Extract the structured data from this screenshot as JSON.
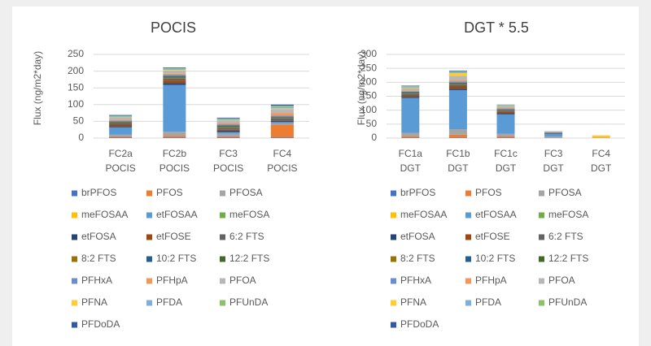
{
  "chart_data": [
    {
      "type": "bar",
      "stacked": true,
      "title": "POCIS",
      "y_label": "Flux (ng/m2*day)",
      "categories": [
        [
          "FC2a",
          "POCIS"
        ],
        [
          "FC2b",
          "POCIS"
        ],
        [
          "FC3",
          "POCIS"
        ],
        [
          "FC4",
          "POCIS"
        ]
      ],
      "ylim": [
        0,
        250
      ],
      "yticks": [
        0,
        50,
        100,
        150,
        200,
        250
      ],
      "grid": true,
      "legend": "bottom",
      "series": [
        {
          "name": "brPFOS",
          "color": "#4472c4",
          "values": [
            2,
            2,
            2,
            2
          ]
        },
        {
          "name": "PFOS",
          "color": "#ed7d31",
          "values": [
            3,
            5,
            3,
            38
          ]
        },
        {
          "name": "PFOSA",
          "color": "#a5a5a5",
          "values": [
            5,
            12,
            8,
            3
          ]
        },
        {
          "name": "meFOSAA",
          "color": "#ffc000",
          "values": [
            0,
            0,
            0,
            0
          ]
        },
        {
          "name": "etFOSAA",
          "color": "#5b9bd5",
          "values": [
            22,
            140,
            5,
            5
          ]
        },
        {
          "name": "meFOSA",
          "color": "#70ad47",
          "values": [
            0,
            0,
            0,
            0
          ]
        },
        {
          "name": "etFOSA",
          "color": "#264478",
          "values": [
            3,
            5,
            4,
            3
          ]
        },
        {
          "name": "etFOSE",
          "color": "#9e480e",
          "values": [
            5,
            8,
            3,
            2
          ]
        },
        {
          "name": "6:2 FTS",
          "color": "#636363",
          "values": [
            5,
            6,
            5,
            6
          ]
        },
        {
          "name": "8:2 FTS",
          "color": "#997300",
          "values": [
            2,
            3,
            3,
            2
          ]
        },
        {
          "name": "10:2 FTS",
          "color": "#255e91",
          "values": [
            2,
            3,
            3,
            2
          ]
        },
        {
          "name": "12:2 FTS",
          "color": "#43682b",
          "values": [
            1,
            2,
            2,
            1
          ]
        },
        {
          "name": "PFHxA",
          "color": "#698ed0",
          "values": [
            2,
            3,
            3,
            3
          ]
        },
        {
          "name": "PFHpA",
          "color": "#f1975a",
          "values": [
            3,
            3,
            4,
            8
          ]
        },
        {
          "name": "PFOA",
          "color": "#b7b7b7",
          "values": [
            6,
            10,
            8,
            12
          ]
        },
        {
          "name": "PFNA",
          "color": "#ffcd33",
          "values": [
            1,
            2,
            1,
            2
          ]
        },
        {
          "name": "PFDA",
          "color": "#7cafdd",
          "values": [
            3,
            3,
            3,
            5
          ]
        },
        {
          "name": "PFUnDA",
          "color": "#8cc168",
          "values": [
            2,
            2,
            2,
            3
          ]
        },
        {
          "name": "PFDoDA",
          "color": "#335aa1",
          "values": [
            2,
            2,
            2,
            3
          ]
        }
      ]
    },
    {
      "type": "bar",
      "stacked": true,
      "title": "DGT * 5.5",
      "y_label": "Flux (ng/m2*day)",
      "categories": [
        [
          "FC1a",
          "DGT"
        ],
        [
          "FC1b",
          "DGT"
        ],
        [
          "FC1c",
          "DGT"
        ],
        [
          "FC3",
          "DGT"
        ],
        [
          "FC4",
          "DGT"
        ]
      ],
      "ylim": [
        0,
        300
      ],
      "yticks": [
        0,
        50,
        100,
        150,
        200,
        250,
        300
      ],
      "grid": true,
      "legend": "bottom",
      "series": [
        {
          "name": "brPFOS",
          "color": "#4472c4",
          "values": [
            2,
            2,
            2,
            1,
            0
          ]
        },
        {
          "name": "PFOS",
          "color": "#ed7d31",
          "values": [
            5,
            10,
            5,
            1,
            1
          ]
        },
        {
          "name": "PFOSA",
          "color": "#a5a5a5",
          "values": [
            12,
            20,
            8,
            3,
            1
          ]
        },
        {
          "name": "meFOSAA",
          "color": "#ffc000",
          "values": [
            0,
            0,
            0,
            0,
            5
          ]
        },
        {
          "name": "etFOSAA",
          "color": "#5b9bd5",
          "values": [
            125,
            140,
            70,
            10,
            0
          ]
        },
        {
          "name": "meFOSA",
          "color": "#70ad47",
          "values": [
            0,
            0,
            0,
            0,
            0
          ]
        },
        {
          "name": "etFOSA",
          "color": "#264478",
          "values": [
            4,
            5,
            4,
            2,
            0
          ]
        },
        {
          "name": "etFOSE",
          "color": "#9e480e",
          "values": [
            5,
            8,
            6,
            1,
            0
          ]
        },
        {
          "name": "6:2 FTS",
          "color": "#636363",
          "values": [
            5,
            6,
            3,
            1,
            0
          ]
        },
        {
          "name": "8:2 FTS",
          "color": "#997300",
          "values": [
            2,
            3,
            2,
            0,
            0
          ]
        },
        {
          "name": "10:2 FTS",
          "color": "#255e91",
          "values": [
            3,
            3,
            2,
            1,
            0
          ]
        },
        {
          "name": "12:2 FTS",
          "color": "#43682b",
          "values": [
            2,
            2,
            1,
            0,
            0
          ]
        },
        {
          "name": "PFHxA",
          "color": "#698ed0",
          "values": [
            3,
            4,
            3,
            1,
            0
          ]
        },
        {
          "name": "PFHpA",
          "color": "#f1975a",
          "values": [
            3,
            5,
            3,
            1,
            0
          ]
        },
        {
          "name": "PFOA",
          "color": "#b7b7b7",
          "values": [
            8,
            15,
            5,
            2,
            1
          ]
        },
        {
          "name": "PFNA",
          "color": "#ffcd33",
          "values": [
            2,
            10,
            1,
            0,
            2
          ]
        },
        {
          "name": "PFDA",
          "color": "#7cafdd",
          "values": [
            3,
            4,
            2,
            1,
            0
          ]
        },
        {
          "name": "PFUnDA",
          "color": "#8cc168",
          "values": [
            2,
            3,
            2,
            0,
            0
          ]
        },
        {
          "name": "PFDoDA",
          "color": "#335aa1",
          "values": [
            2,
            2,
            1,
            0,
            0
          ]
        }
      ]
    }
  ]
}
